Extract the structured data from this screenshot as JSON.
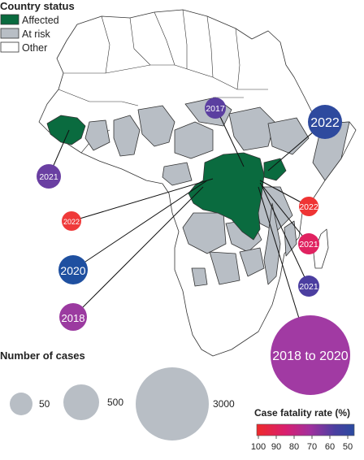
{
  "legend": {
    "title": "Country status",
    "items": [
      {
        "label": "Affected",
        "color": "#0a6b3f"
      },
      {
        "label": "At risk",
        "color": "#b8bec5"
      },
      {
        "label": "Other",
        "color": "#ffffff"
      }
    ]
  },
  "size_legend": {
    "title": "Number of cases",
    "entries": [
      {
        "label": "50",
        "cases": 50
      },
      {
        "label": "500",
        "cases": 500
      },
      {
        "label": "3000",
        "cases": 3000
      }
    ]
  },
  "color_legend": {
    "title": "Case fatality rate (%)",
    "ticks": [
      "100",
      "90",
      "80",
      "70",
      "60",
      "50"
    ],
    "range": [
      100,
      45
    ],
    "colors": [
      "#ee2a2a",
      "#d81f70",
      "#a0309e",
      "#4a3fa0",
      "#2a4aa0"
    ]
  },
  "outbreaks": [
    {
      "label": "2017",
      "color": "#5b3fa0",
      "size": "small"
    },
    {
      "label": "2022",
      "color": "#2e4a9e",
      "size": "medium"
    },
    {
      "label": "2021",
      "color": "#6a3fa2",
      "size": "small"
    },
    {
      "label": "2022",
      "color": "#ef3434",
      "size": "small"
    },
    {
      "label": "2021",
      "color": "#e02260",
      "size": "small"
    },
    {
      "label": "2021",
      "color": "#4b3ea0",
      "size": "small"
    },
    {
      "label": "2022",
      "color": "#ef3a3a",
      "size": "small"
    },
    {
      "label": "2020",
      "color": "#1f50a0",
      "size": "medium"
    },
    {
      "label": "2018",
      "color": "#9b3aa0",
      "size": "medium"
    },
    {
      "label": "2018 to 2020",
      "color": "#a13aa3",
      "size": "large"
    }
  ]
}
